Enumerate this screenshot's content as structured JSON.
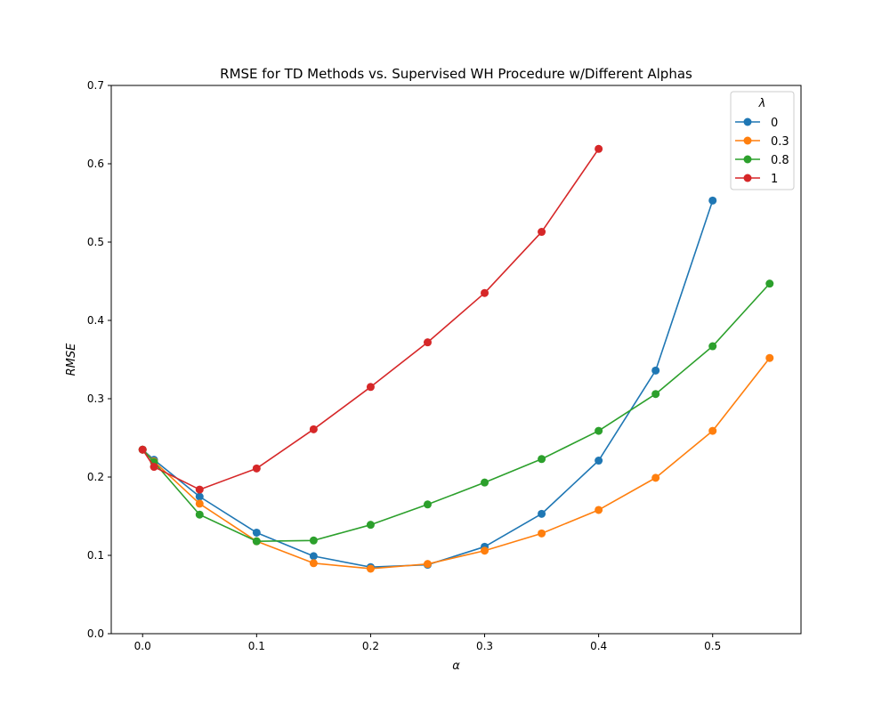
{
  "chart_data": {
    "type": "line",
    "title": "RMSE for TD Methods vs. Supervised WH Procedure w/Different Alphas",
    "xlabel": "α",
    "ylabel": "RMSE",
    "xlim": [
      -0.0275,
      0.5775
    ],
    "ylim": [
      0,
      0.7
    ],
    "xticks": [
      0.0,
      0.1,
      0.2,
      0.3,
      0.4,
      0.5
    ],
    "xtick_labels": [
      "0.0",
      "0.1",
      "0.2",
      "0.3",
      "0.4",
      "0.5"
    ],
    "yticks": [
      0.0,
      0.1,
      0.2,
      0.3,
      0.4,
      0.5,
      0.6,
      0.7
    ],
    "ytick_labels": [
      "0.0",
      "0.1",
      "0.2",
      "0.3",
      "0.4",
      "0.5",
      "0.6",
      "0.7"
    ],
    "grid": false,
    "legend": {
      "title": "λ",
      "placement": "top-right"
    },
    "series": [
      {
        "name": "0",
        "color": "#1f77b4",
        "x": [
          0.0,
          0.01,
          0.05,
          0.1,
          0.15,
          0.2,
          0.25,
          0.3,
          0.35,
          0.4,
          0.45,
          0.5
        ],
        "y": [
          0.235,
          0.222,
          0.175,
          0.129,
          0.099,
          0.085,
          0.088,
          0.111,
          0.153,
          0.221,
          0.336,
          0.553
        ]
      },
      {
        "name": "0.3",
        "color": "#ff7f0e",
        "x": [
          0.0,
          0.01,
          0.05,
          0.1,
          0.15,
          0.2,
          0.25,
          0.3,
          0.35,
          0.4,
          0.45,
          0.5,
          0.55
        ],
        "y": [
          0.235,
          0.22,
          0.166,
          0.118,
          0.09,
          0.083,
          0.089,
          0.106,
          0.128,
          0.158,
          0.199,
          0.259,
          0.352
        ]
      },
      {
        "name": "0.8",
        "color": "#2ca02c",
        "x": [
          0.0,
          0.01,
          0.05,
          0.1,
          0.15,
          0.2,
          0.25,
          0.3,
          0.35,
          0.4,
          0.45,
          0.5,
          0.55
        ],
        "y": [
          0.235,
          0.219,
          0.152,
          0.118,
          0.119,
          0.139,
          0.165,
          0.193,
          0.223,
          0.259,
          0.306,
          0.367,
          0.447
        ]
      },
      {
        "name": "1",
        "color": "#d62728",
        "x": [
          0.0,
          0.01,
          0.05,
          0.1,
          0.15,
          0.2,
          0.25,
          0.3,
          0.35,
          0.4
        ],
        "y": [
          0.235,
          0.213,
          0.184,
          0.211,
          0.261,
          0.315,
          0.372,
          0.435,
          0.513,
          0.619
        ]
      }
    ]
  }
}
